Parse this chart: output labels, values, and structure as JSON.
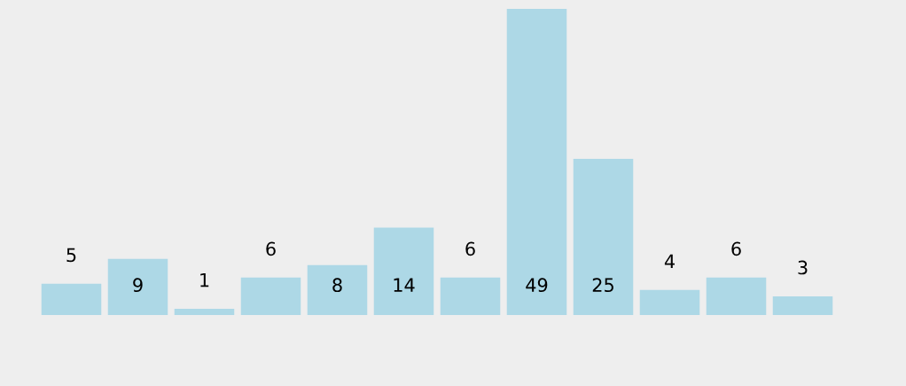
{
  "chart_data": {
    "type": "bar",
    "categories": [
      null,
      null,
      null,
      null,
      null,
      null,
      null,
      null,
      null,
      null,
      null,
      null
    ],
    "values": [
      5,
      9,
      1,
      6,
      8,
      14,
      6,
      49,
      25,
      4,
      6,
      3
    ],
    "color": "#add8e6",
    "data_labels": true,
    "grid": false,
    "legend": false
  }
}
